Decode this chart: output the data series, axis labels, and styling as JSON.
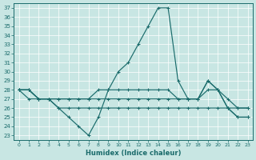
{
  "xlabel": "Humidex (Indice chaleur)",
  "xlim": [
    -0.5,
    23.5
  ],
  "ylim": [
    22.5,
    37.5
  ],
  "yticks": [
    23,
    24,
    25,
    26,
    27,
    28,
    29,
    30,
    31,
    32,
    33,
    34,
    35,
    36,
    37
  ],
  "xticks": [
    0,
    1,
    2,
    3,
    4,
    5,
    6,
    7,
    8,
    9,
    10,
    11,
    12,
    13,
    14,
    15,
    16,
    17,
    18,
    19,
    20,
    21,
    22,
    23
  ],
  "bg_color": "#c8e6e3",
  "line_color": "#1a6b6b",
  "lines": [
    [
      28,
      28,
      27,
      27,
      26,
      25,
      24,
      23,
      25,
      28,
      30,
      31,
      33,
      35,
      37,
      37,
      29,
      27,
      27,
      29,
      28,
      26,
      25,
      25
    ],
    [
      28,
      28,
      27,
      27,
      26,
      26,
      26,
      26,
      26,
      26,
      26,
      26,
      26,
      26,
      26,
      26,
      26,
      26,
      26,
      26,
      26,
      26,
      25,
      25
    ],
    [
      28,
      28,
      27,
      27,
      27,
      27,
      27,
      27,
      28,
      28,
      28,
      28,
      28,
      28,
      28,
      28,
      27,
      27,
      27,
      28,
      28,
      27,
      26,
      26
    ],
    [
      28,
      27,
      27,
      27,
      27,
      27,
      27,
      27,
      27,
      27,
      27,
      27,
      27,
      27,
      27,
      27,
      27,
      27,
      27,
      29,
      28,
      26,
      26,
      26
    ]
  ]
}
